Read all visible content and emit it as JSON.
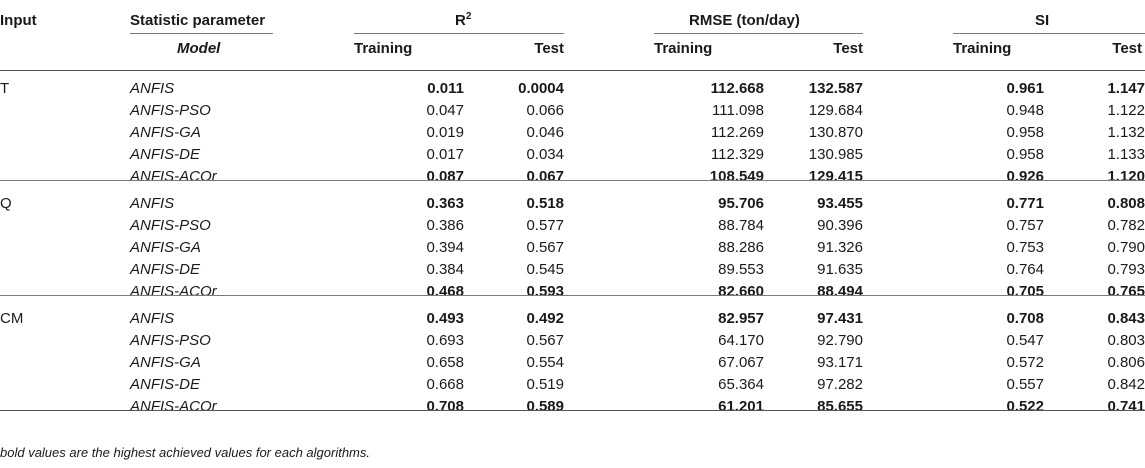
{
  "headers": {
    "input": "Input",
    "statistic": "Statistic parameter",
    "model": "Model",
    "r2": "R",
    "r2_sup": "2",
    "rmse": "RMSE (ton/day)",
    "si": "SI",
    "training": "Training",
    "test": "Test"
  },
  "groups": [
    {
      "input": "T",
      "rows": [
        {
          "model": "ANFIS",
          "r2_tr": "0.011",
          "r2_te": "0.0004",
          "rmse_tr": "112.668",
          "rmse_te": "132.587",
          "si_tr": "0.961",
          "si_te": "1.147",
          "bold": true
        },
        {
          "model": "ANFIS-PSO",
          "r2_tr": "0.047",
          "r2_te": "0.066",
          "rmse_tr": "111.098",
          "rmse_te": "129.684",
          "si_tr": "0.948",
          "si_te": "1.122",
          "bold": false
        },
        {
          "model": "ANFIS-GA",
          "r2_tr": "0.019",
          "r2_te": "0.046",
          "rmse_tr": "112.269",
          "rmse_te": "130.870",
          "si_tr": "0.958",
          "si_te": "1.132",
          "bold": false
        },
        {
          "model": "ANFIS-DE",
          "r2_tr": "0.017",
          "r2_te": "0.034",
          "rmse_tr": "112.329",
          "rmse_te": "130.985",
          "si_tr": "0.958",
          "si_te": "1.133",
          "bold": false
        },
        {
          "model": "ANFIS-ACOr",
          "r2_tr": "0.087",
          "r2_te": "0.067",
          "rmse_tr": "108.549",
          "rmse_te": "129.415",
          "si_tr": "0.926",
          "si_te": "1.120",
          "bold": true
        }
      ]
    },
    {
      "input": "Q",
      "rows": [
        {
          "model": "ANFIS",
          "r2_tr": "0.363",
          "r2_te": "0.518",
          "rmse_tr": "95.706",
          "rmse_te": "93.455",
          "si_tr": "0.771",
          "si_te": "0.808",
          "bold": true
        },
        {
          "model": "ANFIS-PSO",
          "r2_tr": "0.386",
          "r2_te": "0.577",
          "rmse_tr": "88.784",
          "rmse_te": "90.396",
          "si_tr": "0.757",
          "si_te": "0.782",
          "bold": false
        },
        {
          "model": "ANFIS-GA",
          "r2_tr": "0.394",
          "r2_te": "0.567",
          "rmse_tr": "88.286",
          "rmse_te": "91.326",
          "si_tr": "0.753",
          "si_te": "0.790",
          "bold": false
        },
        {
          "model": "ANFIS-DE",
          "r2_tr": "0.384",
          "r2_te": "0.545",
          "rmse_tr": "89.553",
          "rmse_te": "91.635",
          "si_tr": "0.764",
          "si_te": "0.793",
          "bold": false
        },
        {
          "model": "ANFIS-ACOr",
          "r2_tr": "0.468",
          "r2_te": "0.593",
          "rmse_tr": "82.660",
          "rmse_te": "88.494",
          "si_tr": "0.705",
          "si_te": "0.765",
          "bold": true
        }
      ]
    },
    {
      "input": "CM",
      "rows": [
        {
          "model": "ANFIS",
          "r2_tr": "0.493",
          "r2_te": "0.492",
          "rmse_tr": "82.957",
          "rmse_te": "97.431",
          "si_tr": "0.708",
          "si_te": "0.843",
          "bold": true
        },
        {
          "model": "ANFIS-PSO",
          "r2_tr": "0.693",
          "r2_te": "0.567",
          "rmse_tr": "64.170",
          "rmse_te": "92.790",
          "si_tr": "0.547",
          "si_te": "0.803",
          "bold": false
        },
        {
          "model": "ANFIS-GA",
          "r2_tr": "0.658",
          "r2_te": "0.554",
          "rmse_tr": "67.067",
          "rmse_te": "93.171",
          "si_tr": "0.572",
          "si_te": "0.806",
          "bold": false
        },
        {
          "model": "ANFIS-DE",
          "r2_tr": "0.668",
          "r2_te": "0.519",
          "rmse_tr": "65.364",
          "rmse_te": "97.282",
          "si_tr": "0.557",
          "si_te": "0.842",
          "bold": false
        },
        {
          "model": "ANFIS-ACOr",
          "r2_tr": "0.708",
          "r2_te": "0.589",
          "rmse_tr": "61.201",
          "rmse_te": "85.655",
          "si_tr": "0.522",
          "si_te": "0.741",
          "bold": true
        }
      ]
    }
  ],
  "footnote": "bold values are the highest achieved values for each algorithms."
}
